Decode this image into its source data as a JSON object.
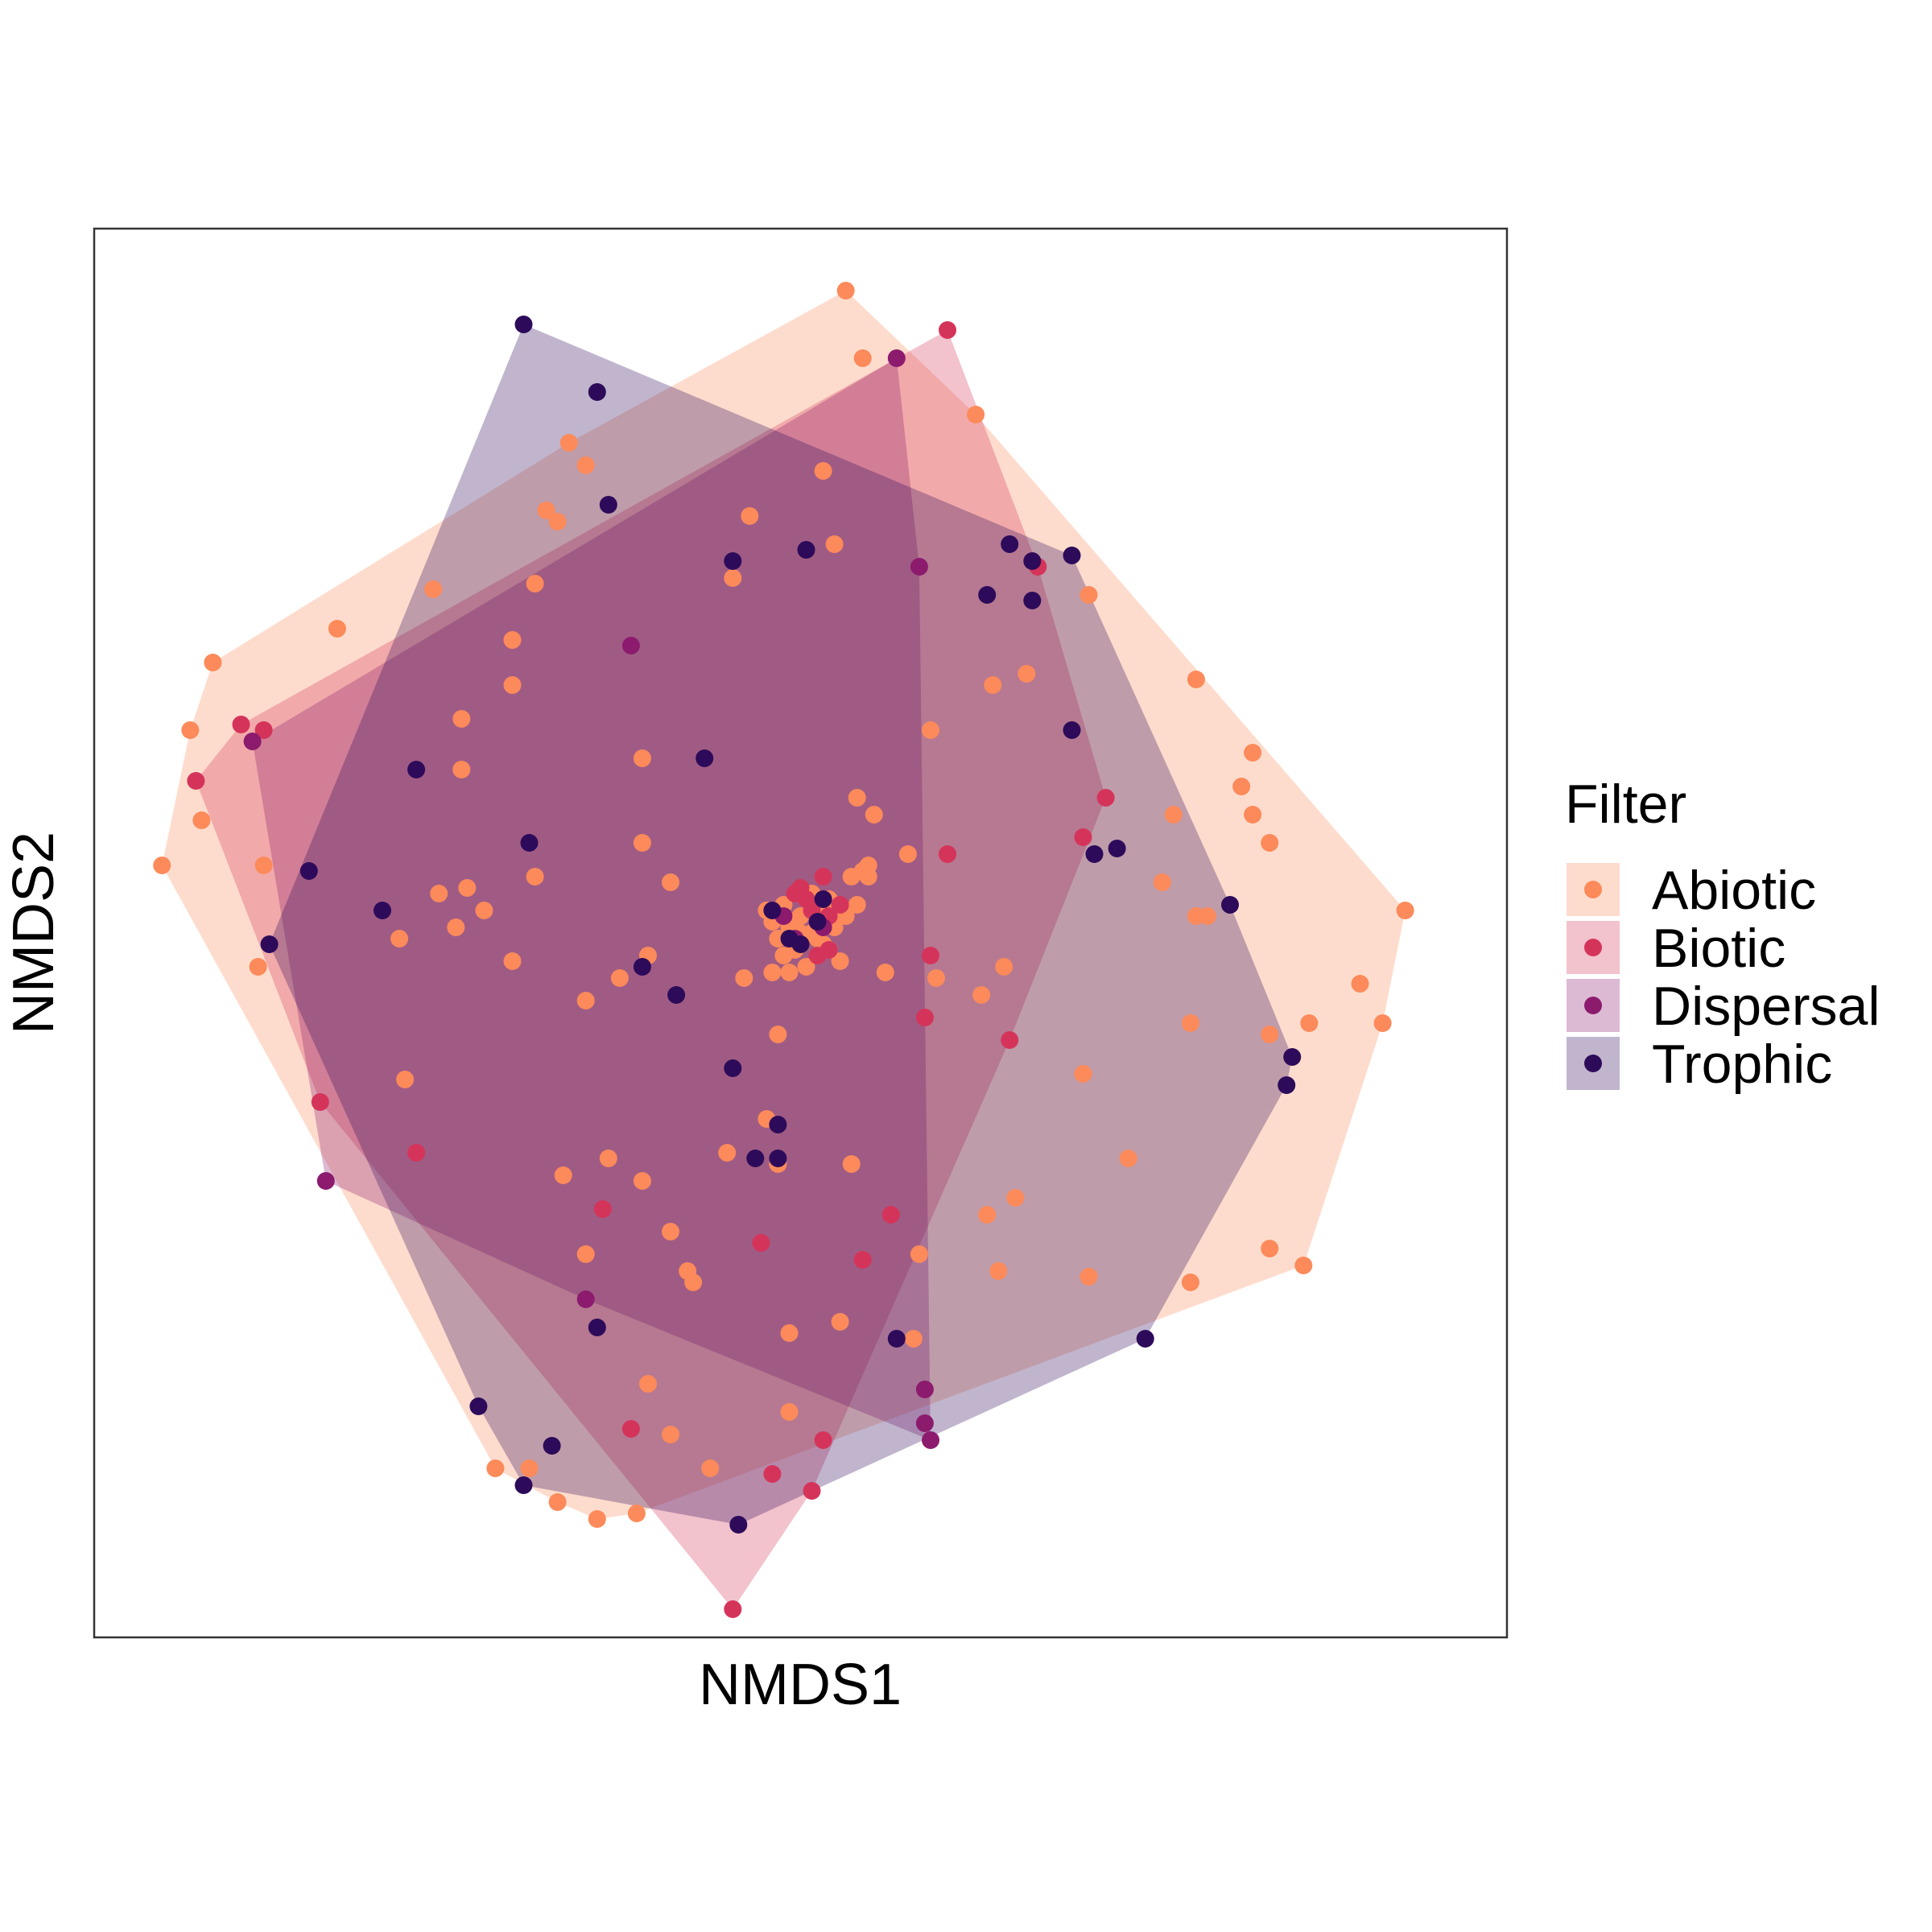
{
  "chart_data": {
    "type": "scatter",
    "xlabel": "NMDS1",
    "ylabel": "NMDS2",
    "axis_ticks": false,
    "grid": false,
    "hulls": true,
    "xlim": [
      -1.25,
      1.25
    ],
    "ylim": [
      -1.25,
      1.25
    ],
    "legend": {
      "title": "Filter",
      "position": "right"
    },
    "series": [
      {
        "name": "Abiotic",
        "color": "#fc8a5a",
        "points": [
          [
            0.08,
            1.14
          ],
          [
            0.11,
            1.02
          ],
          [
            0.31,
            0.92
          ],
          [
            -0.41,
            0.87
          ],
          [
            0.04,
            0.82
          ],
          [
            0.06,
            0.69
          ],
          [
            -0.38,
            0.83
          ],
          [
            -0.43,
            0.73
          ],
          [
            -0.45,
            0.75
          ],
          [
            -0.09,
            0.74
          ],
          [
            -0.12,
            0.63
          ],
          [
            -0.47,
            0.62
          ],
          [
            -0.65,
            0.61
          ],
          [
            -0.82,
            0.54
          ],
          [
            -1.04,
            0.48
          ],
          [
            -0.51,
            0.52
          ],
          [
            -0.51,
            0.44
          ],
          [
            -0.6,
            0.38
          ],
          [
            -0.6,
            0.29
          ],
          [
            -1.08,
            0.36
          ],
          [
            -1.06,
            0.2
          ],
          [
            0.51,
            0.6
          ],
          [
            0.34,
            0.44
          ],
          [
            0.4,
            0.46
          ],
          [
            0.23,
            0.36
          ],
          [
            0.8,
            0.32
          ],
          [
            0.8,
            0.21
          ],
          [
            0.83,
            0.16
          ],
          [
            0.78,
            0.26
          ],
          [
            0.64,
            0.09
          ],
          [
            0.7,
            0.03
          ],
          [
            0.72,
            0.03
          ],
          [
            0.83,
            -0.18
          ],
          [
            0.9,
            -0.16
          ],
          [
            0.99,
            -0.09
          ],
          [
            1.03,
            -0.16
          ],
          [
            1.07,
            0.04
          ],
          [
            0.66,
            0.21
          ],
          [
            0.7,
            0.45
          ],
          [
            -0.28,
            0.31
          ],
          [
            0.1,
            0.24
          ],
          [
            0.13,
            0.21
          ],
          [
            0.19,
            0.14
          ],
          [
            0.12,
            0.12
          ],
          [
            0.12,
            0.1
          ],
          [
            0.11,
            0.11
          ],
          [
            0.09,
            0.1
          ],
          [
            0.01,
            0.06
          ],
          [
            -0.27,
            -0.04
          ],
          [
            -0.59,
            0.08
          ],
          [
            -0.64,
            0.07
          ],
          [
            -0.61,
            0.01
          ],
          [
            -0.51,
            -0.05
          ],
          [
            -0.71,
            -0.01
          ],
          [
            -1.13,
            0.12
          ],
          [
            -0.95,
            0.12
          ],
          [
            -0.28,
            0.16
          ],
          [
            -0.47,
            0.1
          ],
          [
            -0.56,
            0.04
          ],
          [
            -0.23,
            0.09
          ],
          [
            -0.7,
            -0.26
          ],
          [
            -0.96,
            -0.06
          ],
          [
            -0.32,
            -0.08
          ],
          [
            -0.38,
            -0.12
          ],
          [
            -0.05,
            -0.07
          ],
          [
            0.15,
            -0.07
          ],
          [
            0.24,
            -0.08
          ],
          [
            0.32,
            -0.11
          ],
          [
            0.36,
            -0.06
          ],
          [
            0.69,
            -0.16
          ],
          [
            0.5,
            -0.25
          ],
          [
            0.58,
            -0.4
          ],
          [
            0.38,
            -0.47
          ],
          [
            0.33,
            -0.5
          ],
          [
            0.83,
            -0.56
          ],
          [
            0.89,
            -0.59
          ],
          [
            0.51,
            -0.61
          ],
          [
            0.69,
            -0.62
          ],
          [
            -0.34,
            -0.4
          ],
          [
            -0.1,
            -0.08
          ],
          [
            -0.04,
            -0.41
          ],
          [
            -0.06,
            -0.33
          ],
          [
            0.09,
            -0.41
          ],
          [
            0.21,
            -0.57
          ],
          [
            0.2,
            -0.72
          ],
          [
            0.35,
            -0.6
          ],
          [
            -0.2,
            -0.6
          ],
          [
            -0.19,
            -0.62
          ],
          [
            -0.13,
            -0.39
          ],
          [
            -0.23,
            -0.53
          ],
          [
            -0.28,
            -0.44
          ],
          [
            -0.38,
            -0.57
          ],
          [
            -0.42,
            -0.43
          ],
          [
            -0.04,
            -0.18
          ],
          [
            -0.27,
            -0.8
          ],
          [
            -0.02,
            -0.85
          ],
          [
            -0.23,
            -0.89
          ],
          [
            0.07,
            -0.69
          ],
          [
            -0.48,
            -0.95
          ],
          [
            -0.54,
            -0.95
          ],
          [
            -0.36,
            -1.04
          ],
          [
            -0.43,
            -1.01
          ],
          [
            -0.29,
            -1.03
          ],
          [
            -0.16,
            -0.95
          ],
          [
            -0.02,
            -0.71
          ],
          [
            -0.05,
            0.02
          ],
          [
            -0.03,
            0.05
          ],
          [
            -0.02,
            0.01
          ],
          [
            0.0,
            0.03
          ],
          [
            0.02,
            0.0
          ],
          [
            0.04,
            -0.02
          ],
          [
            0.06,
            0.01
          ],
          [
            0.08,
            0.03
          ],
          [
            -0.01,
            -0.03
          ],
          [
            0.03,
            0.05
          ],
          [
            0.05,
            -0.03
          ],
          [
            0.01,
            -0.06
          ],
          [
            -0.04,
            -0.01
          ],
          [
            0.07,
            -0.05
          ],
          [
            0.02,
            0.07
          ],
          [
            -0.02,
            -0.07
          ],
          [
            0.05,
            0.06
          ],
          [
            0.1,
            0.05
          ],
          [
            -0.06,
            0.04
          ],
          [
            0.0,
            0.0
          ],
          [
            0.03,
            -0.01
          ],
          [
            0.06,
            0.04
          ],
          [
            -0.03,
            -0.04
          ]
        ]
      },
      {
        "name": "Biotic",
        "color": "#d5345a",
        "points": [
          [
            0.26,
            1.07
          ],
          [
            0.42,
            0.65
          ],
          [
            0.54,
            0.24
          ],
          [
            0.5,
            0.17
          ],
          [
            0.37,
            -0.19
          ],
          [
            0.26,
            0.14
          ],
          [
            0.23,
            -0.04
          ],
          [
            0.22,
            -0.15
          ],
          [
            0.16,
            -0.5
          ],
          [
            0.11,
            -0.58
          ],
          [
            0.04,
            -0.9
          ],
          [
            0.02,
            -0.99
          ],
          [
            -0.12,
            -1.2
          ],
          [
            -0.05,
            -0.96
          ],
          [
            -0.3,
            -0.88
          ],
          [
            -0.07,
            -0.55
          ],
          [
            -0.35,
            -0.49
          ],
          [
            -0.68,
            -0.39
          ],
          [
            -0.85,
            -0.3
          ],
          [
            -1.07,
            0.27
          ],
          [
            -0.95,
            0.36
          ],
          [
            -0.99,
            0.37
          ],
          [
            0.05,
            0.03
          ],
          [
            0.02,
            0.04
          ],
          [
            -0.01,
            0.07
          ],
          [
            0.05,
            -0.03
          ],
          [
            0.01,
            0.06
          ],
          [
            0.03,
            -0.04
          ],
          [
            0.0,
            0.08
          ],
          [
            0.07,
            0.05
          ],
          [
            0.04,
            0.1
          ]
        ]
      },
      {
        "name": "Dispersal",
        "color": "#8c1b6e",
        "points": [
          [
            0.17,
            1.02
          ],
          [
            0.21,
            0.65
          ],
          [
            -0.3,
            0.51
          ],
          [
            -0.97,
            0.34
          ],
          [
            -0.84,
            -0.44
          ],
          [
            -0.38,
            -0.65
          ],
          [
            0.22,
            -0.81
          ],
          [
            0.22,
            -0.87
          ],
          [
            0.23,
            -0.9
          ],
          [
            -0.01,
            -0.01
          ],
          [
            0.04,
            0.01
          ],
          [
            -0.03,
            0.03
          ]
        ]
      },
      {
        "name": "Trophic",
        "color": "#2d0b5a",
        "points": [
          [
            -0.49,
            1.08
          ],
          [
            -0.36,
            0.96
          ],
          [
            -0.34,
            0.76
          ],
          [
            0.01,
            0.68
          ],
          [
            -0.12,
            0.66
          ],
          [
            0.41,
            0.66
          ],
          [
            0.37,
            0.69
          ],
          [
            0.48,
            0.67
          ],
          [
            0.41,
            0.59
          ],
          [
            0.33,
            0.6
          ],
          [
            -0.17,
            0.31
          ],
          [
            -0.68,
            0.29
          ],
          [
            -0.48,
            0.16
          ],
          [
            -0.87,
            0.11
          ],
          [
            -0.74,
            0.04
          ],
          [
            -0.94,
            -0.02
          ],
          [
            -0.28,
            -0.06
          ],
          [
            -0.22,
            -0.11
          ],
          [
            -0.12,
            -0.24
          ],
          [
            -0.04,
            -0.34
          ],
          [
            -0.08,
            -0.4
          ],
          [
            -0.36,
            -0.7
          ],
          [
            0.17,
            -0.72
          ],
          [
            0.61,
            -0.72
          ],
          [
            0.76,
            0.05
          ],
          [
            0.86,
            -0.27
          ],
          [
            0.87,
            -0.22
          ],
          [
            -0.57,
            -0.84
          ],
          [
            -0.44,
            -0.91
          ],
          [
            -0.49,
            -0.98
          ],
          [
            -0.11,
            -1.05
          ],
          [
            -0.04,
            -0.4
          ],
          [
            0.48,
            0.36
          ],
          [
            0.52,
            0.14
          ],
          [
            0.56,
            0.15
          ],
          [
            0.03,
            0.02
          ],
          [
            -0.05,
            0.04
          ],
          [
            0.04,
            0.06
          ],
          [
            0.0,
            -0.02
          ],
          [
            -0.02,
            -0.01
          ]
        ]
      }
    ]
  }
}
